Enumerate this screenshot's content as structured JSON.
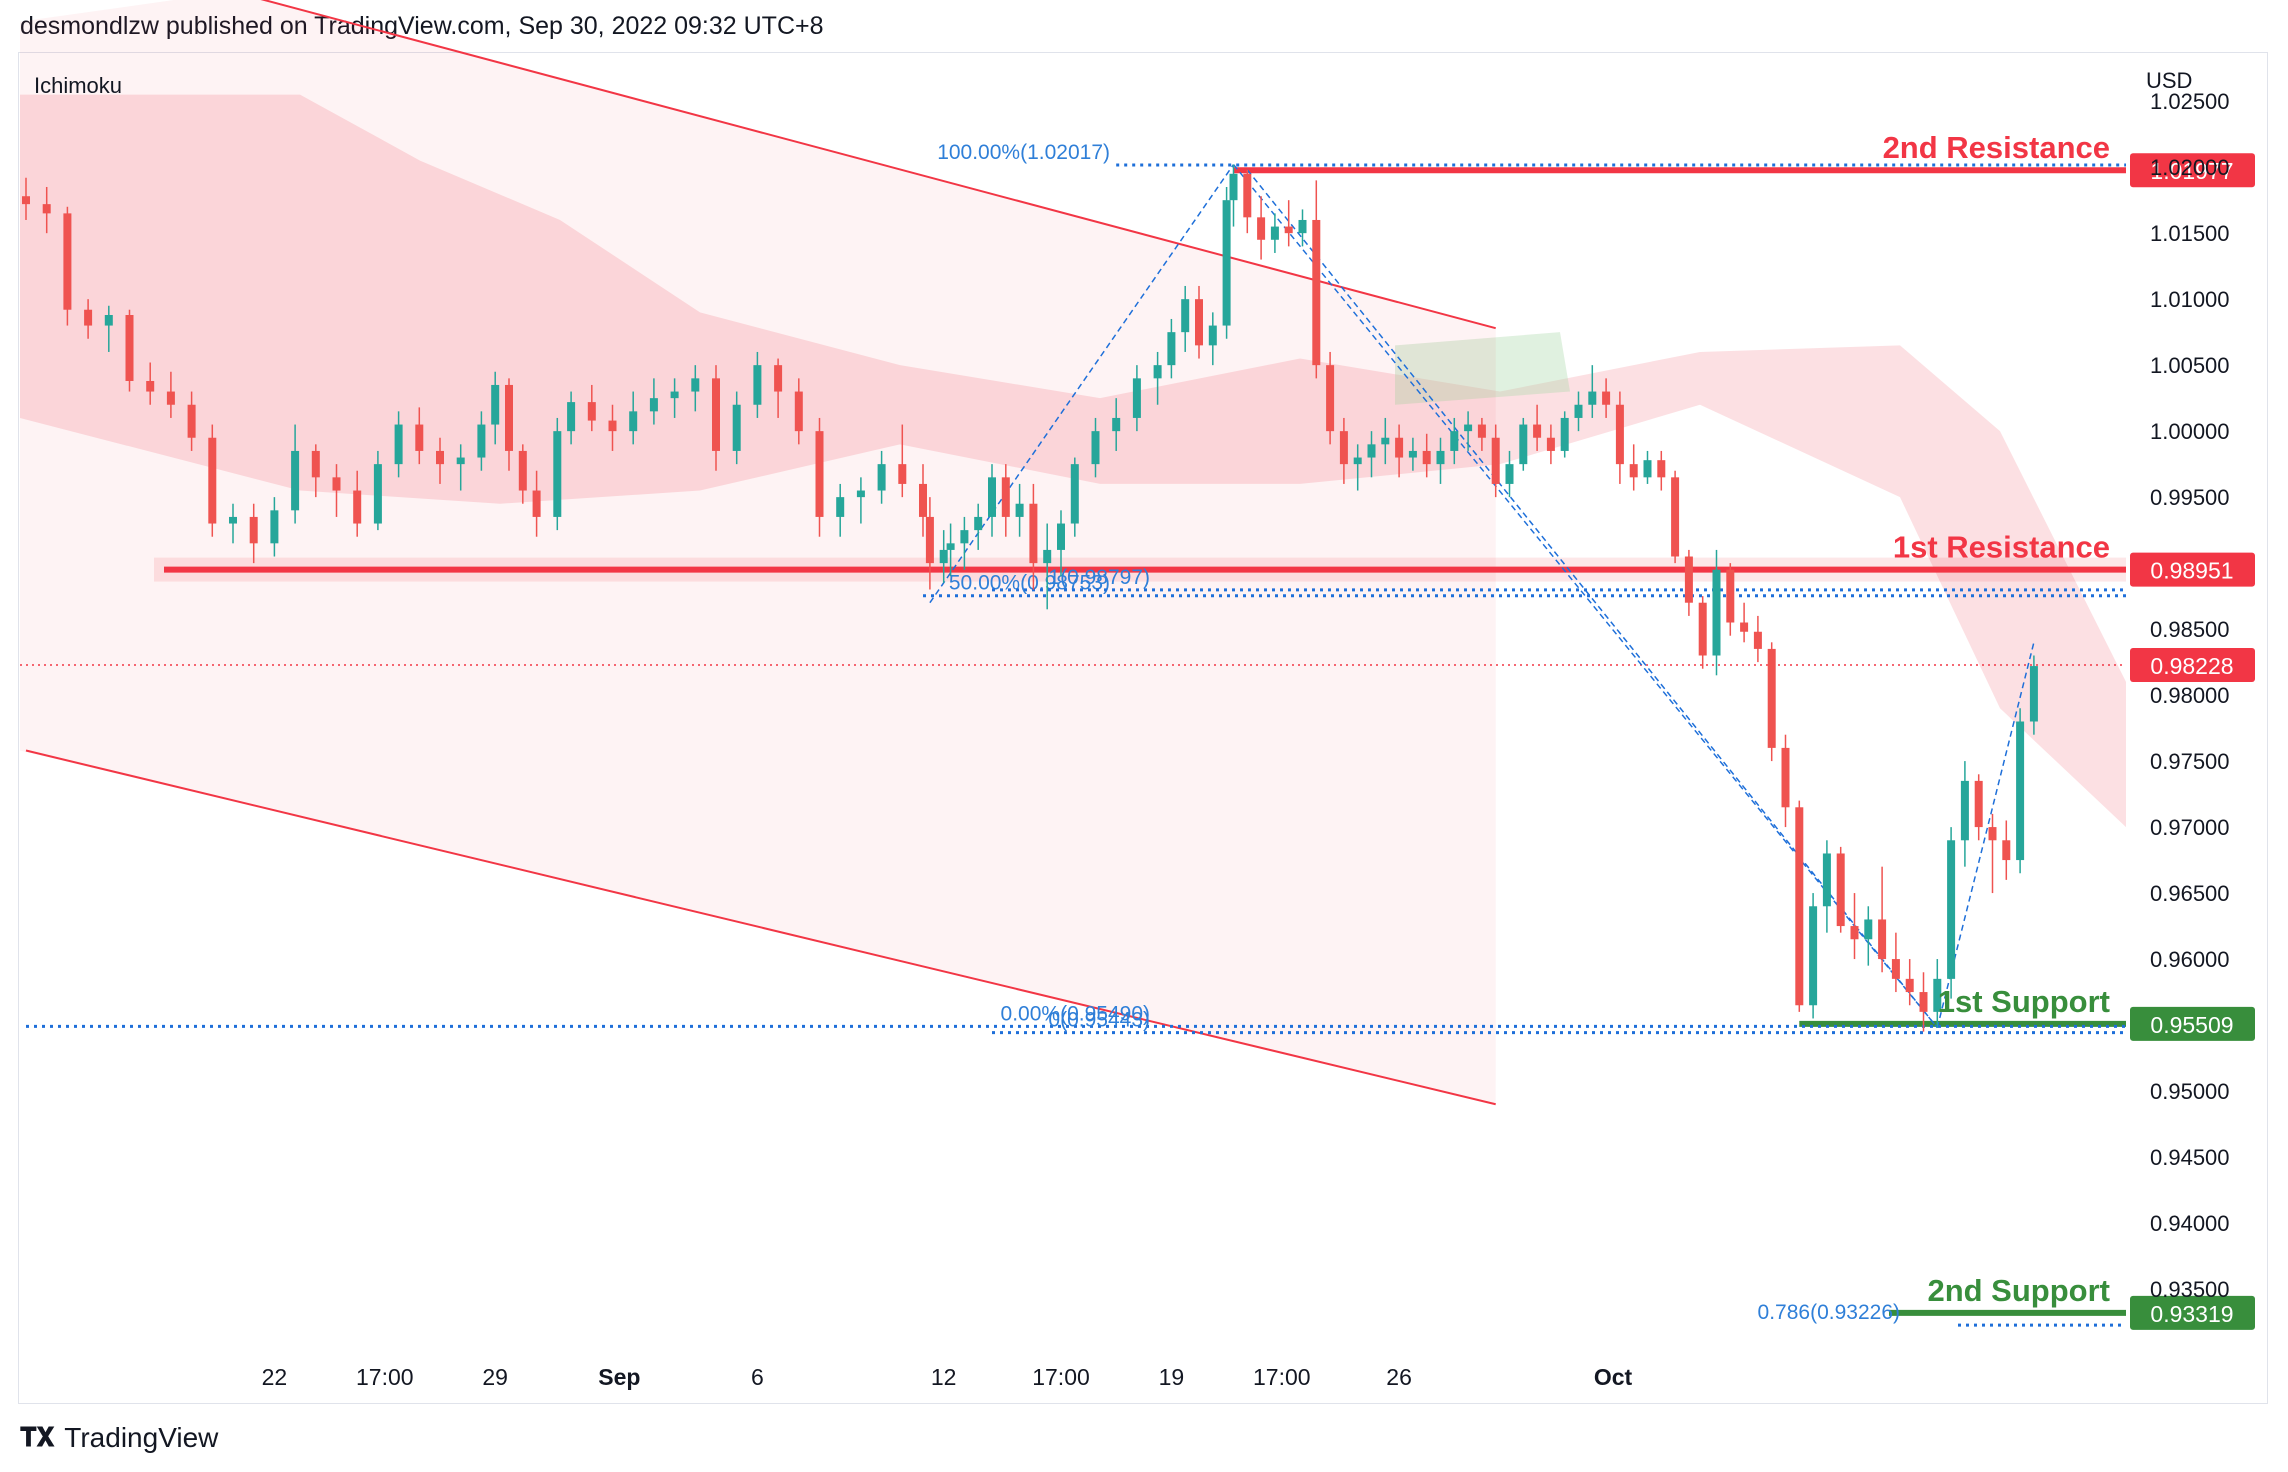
{
  "header": {
    "published": "desmondlzw published on TradingView.com, Sep 30, 2022 09:32 UTC+8"
  },
  "footer": {
    "brand": "TradingView",
    "logo_icon": "tradingview-logo-icon"
  },
  "chart_data": {
    "type": "candlestick",
    "indicator": "Ichimoku",
    "currency": "USD",
    "ylim": [
      0.93,
      1.0285
    ],
    "y_ticks": [
      "1.02500",
      "1.02000",
      "1.01500",
      "1.01000",
      "1.00500",
      "1.00000",
      "0.99500",
      "0.98500",
      "0.98000",
      "0.97500",
      "0.97000",
      "0.96500",
      "0.96000",
      "0.95000",
      "0.94500",
      "0.94000",
      "0.93500"
    ],
    "x_ticks": [
      {
        "label": "22",
        "t": 36,
        "bold": false
      },
      {
        "label": "17:00",
        "t": 52,
        "bold": false
      },
      {
        "label": "29",
        "t": 68,
        "bold": false
      },
      {
        "label": "Sep",
        "t": 86,
        "bold": true
      },
      {
        "label": "6",
        "t": 106,
        "bold": false
      },
      {
        "label": "12",
        "t": 133,
        "bold": false
      },
      {
        "label": "17:00",
        "t": 150,
        "bold": false
      },
      {
        "label": "19",
        "t": 166,
        "bold": false
      },
      {
        "label": "17:00",
        "t": 182,
        "bold": false
      },
      {
        "label": "26",
        "t": 199,
        "bold": false
      },
      {
        "label": "Oct",
        "t": 230,
        "bold": true
      }
    ],
    "price_levels": [
      {
        "label": "2nd Resistance",
        "price": 1.01977,
        "tag": "1.01977",
        "color": "#f23645"
      },
      {
        "label": "1st Resistance",
        "price": 0.98951,
        "tag": "0.98951",
        "color": "#f23645"
      },
      {
        "label": "1st Support",
        "price": 0.95509,
        "tag": "0.95509",
        "color": "#388e3c"
      },
      {
        "label": "2nd Support",
        "price": 0.93319,
        "tag": "0.93319",
        "color": "#388e3c"
      }
    ],
    "last_price": {
      "price": 0.98228,
      "tag": "0.98228",
      "color": "#f23645"
    },
    "fib_labels": [
      {
        "text": "100.00%(1.02017)",
        "price": 1.02017
      },
      {
        "text": "50.00%(0.98753)",
        "price": 0.98753
      },
      {
        "text": "1(0.98797)",
        "price": 0.98797
      },
      {
        "text": "0.00%(0.95490)",
        "price": 0.9549
      },
      {
        "text": "0(0.95443)",
        "price": 0.95443
      },
      {
        "text": "0.786(0.93226)",
        "price": 0.93226
      }
    ],
    "channel": {
      "upper": [
        [
          30,
          1.0333
        ],
        [
          213,
          1.0078
        ]
      ],
      "lower": [
        [
          0,
          0.9758
        ],
        [
          213,
          0.949
        ]
      ]
    },
    "candles": [
      [
        0,
        1.0178,
        1.0192,
        1.016,
        1.0172
      ],
      [
        3,
        1.0172,
        1.0185,
        1.015,
        1.0165
      ],
      [
        6,
        1.0165,
        1.017,
        1.008,
        1.0092
      ],
      [
        9,
        1.0092,
        1.01,
        1.007,
        1.008
      ],
      [
        12,
        1.008,
        1.0095,
        1.006,
        1.0088
      ],
      [
        15,
        1.0088,
        1.0092,
        1.003,
        1.0038
      ],
      [
        18,
        1.0038,
        1.0052,
        1.002,
        1.003
      ],
      [
        21,
        1.003,
        1.0045,
        1.001,
        1.002
      ],
      [
        24,
        1.002,
        1.003,
        0.9985,
        0.9995
      ],
      [
        27,
        0.9995,
        1.0005,
        0.992,
        0.993
      ],
      [
        30,
        0.993,
        0.9945,
        0.9915,
        0.9935
      ],
      [
        33,
        0.9935,
        0.9945,
        0.99,
        0.9915
      ],
      [
        36,
        0.9915,
        0.995,
        0.9905,
        0.994
      ],
      [
        39,
        0.994,
        1.0005,
        0.993,
        0.9985
      ],
      [
        42,
        0.9985,
        0.999,
        0.995,
        0.9965
      ],
      [
        45,
        0.9965,
        0.9975,
        0.9935,
        0.9955
      ],
      [
        48,
        0.9955,
        0.997,
        0.992,
        0.993
      ],
      [
        51,
        0.993,
        0.9985,
        0.9925,
        0.9975
      ],
      [
        54,
        0.9975,
        1.0015,
        0.9965,
        1.0005
      ],
      [
        57,
        1.0005,
        1.0018,
        0.9975,
        0.9985
      ],
      [
        60,
        0.9985,
        0.9995,
        0.996,
        0.9975
      ],
      [
        63,
        0.9975,
        0.999,
        0.9955,
        0.998
      ],
      [
        66,
        0.998,
        1.0015,
        0.997,
        1.0005
      ],
      [
        68,
        1.0005,
        1.0045,
        0.999,
        1.0035
      ],
      [
        70,
        1.0035,
        1.004,
        0.997,
        0.9985
      ],
      [
        72,
        0.9985,
        0.999,
        0.9945,
        0.9955
      ],
      [
        74,
        0.9955,
        0.997,
        0.992,
        0.9935
      ],
      [
        77,
        0.9935,
        1.001,
        0.9925,
        1.0
      ],
      [
        79,
        1.0,
        1.003,
        0.999,
        1.0022
      ],
      [
        82,
        1.0022,
        1.0035,
        1.0,
        1.0008
      ],
      [
        85,
        1.0008,
        1.002,
        0.9985,
        1.0
      ],
      [
        88,
        1.0,
        1.003,
        0.999,
        1.0015
      ],
      [
        91,
        1.0015,
        1.004,
        1.0005,
        1.0025
      ],
      [
        94,
        1.0025,
        1.004,
        1.001,
        1.003
      ],
      [
        97,
        1.003,
        1.005,
        1.0015,
        1.004
      ],
      [
        100,
        1.004,
        1.005,
        0.997,
        0.9985
      ],
      [
        103,
        0.9985,
        1.003,
        0.9975,
        1.002
      ],
      [
        106,
        1.002,
        1.006,
        1.001,
        1.005
      ],
      [
        109,
        1.005,
        1.0055,
        1.001,
        1.003
      ],
      [
        112,
        1.003,
        1.004,
        0.999,
        1.0
      ],
      [
        115,
        1.0,
        1.001,
        0.992,
        0.9935
      ],
      [
        118,
        0.9935,
        0.996,
        0.992,
        0.995
      ],
      [
        121,
        0.995,
        0.9965,
        0.993,
        0.9955
      ],
      [
        124,
        0.9955,
        0.9985,
        0.9945,
        0.9975
      ],
      [
        127,
        0.9975,
        1.0005,
        0.995,
        0.996
      ],
      [
        130,
        0.996,
        0.9975,
        0.992,
        0.9935
      ],
      [
        131,
        0.9935,
        0.995,
        0.988,
        0.99
      ],
      [
        133,
        0.99,
        0.9925,
        0.9885,
        0.991
      ],
      [
        134,
        0.991,
        0.993,
        0.989,
        0.9915
      ],
      [
        136,
        0.9915,
        0.9935,
        0.9895,
        0.9925
      ],
      [
        138,
        0.9925,
        0.9945,
        0.991,
        0.9935
      ],
      [
        140,
        0.9935,
        0.9975,
        0.992,
        0.9965
      ],
      [
        142,
        0.9965,
        0.9975,
        0.992,
        0.9935
      ],
      [
        144,
        0.9935,
        0.996,
        0.992,
        0.9945
      ],
      [
        146,
        0.9945,
        0.996,
        0.988,
        0.99
      ],
      [
        148,
        0.99,
        0.993,
        0.9865,
        0.991
      ],
      [
        150,
        0.991,
        0.994,
        0.989,
        0.993
      ],
      [
        152,
        0.993,
        0.998,
        0.992,
        0.9975
      ],
      [
        155,
        0.9975,
        1.001,
        0.9965,
        1.0
      ],
      [
        158,
        1.0,
        1.0025,
        0.9985,
        1.001
      ],
      [
        161,
        1.001,
        1.005,
        1.0,
        1.004
      ],
      [
        164,
        1.004,
        1.006,
        1.002,
        1.005
      ],
      [
        166,
        1.005,
        1.0085,
        1.004,
        1.0075
      ],
      [
        168,
        1.0075,
        1.011,
        1.006,
        1.01
      ],
      [
        170,
        1.01,
        1.011,
        1.0055,
        1.0065
      ],
      [
        172,
        1.0065,
        1.009,
        1.005,
        1.008
      ],
      [
        174,
        1.008,
        1.0185,
        1.007,
        1.0175
      ],
      [
        175,
        1.0175,
        1.0202,
        1.0155,
        1.0195
      ],
      [
        177,
        1.0195,
        1.0198,
        1.015,
        1.0162
      ],
      [
        179,
        1.0162,
        1.0178,
        1.013,
        1.0145
      ],
      [
        181,
        1.0145,
        1.0165,
        1.0135,
        1.0155
      ],
      [
        183,
        1.0155,
        1.0175,
        1.014,
        1.015
      ],
      [
        185,
        1.015,
        1.0168,
        1.014,
        1.016
      ],
      [
        187,
        1.016,
        1.019,
        1.004,
        1.005
      ],
      [
        189,
        1.005,
        1.006,
        0.999,
        1.0
      ],
      [
        191,
        1.0,
        1.001,
        0.996,
        0.9975
      ],
      [
        193,
        0.9975,
        0.999,
        0.9955,
        0.998
      ],
      [
        195,
        0.998,
        1.0,
        0.9965,
        0.999
      ],
      [
        197,
        0.999,
        1.001,
        0.9975,
        0.9995
      ],
      [
        199,
        0.9995,
        1.0005,
        0.9965,
        0.998
      ],
      [
        201,
        0.998,
        0.9995,
        0.997,
        0.9985
      ],
      [
        203,
        0.9985,
        0.9998,
        0.9965,
        0.9975
      ],
      [
        205,
        0.9975,
        0.9995,
        0.996,
        0.9985
      ],
      [
        207,
        0.9985,
        1.001,
        0.9975,
        1.0
      ],
      [
        209,
        1.0,
        1.0015,
        0.9985,
        1.0005
      ],
      [
        211,
        1.0005,
        1.001,
        0.9985,
        0.9995
      ],
      [
        213,
        0.9995,
        1.0005,
        0.995,
        0.996
      ],
      [
        215,
        0.996,
        0.9985,
        0.995,
        0.9975
      ],
      [
        217,
        0.9975,
        1.001,
        0.997,
        1.0005
      ],
      [
        219,
        1.0005,
        1.002,
        0.9985,
        0.9995
      ],
      [
        221,
        0.9995,
        1.0005,
        0.9975,
        0.9985
      ],
      [
        223,
        0.9985,
        1.0015,
        0.998,
        1.001
      ],
      [
        225,
        1.001,
        1.003,
        1.0,
        1.002
      ],
      [
        227,
        1.002,
        1.005,
        1.001,
        1.003
      ],
      [
        229,
        1.003,
        1.004,
        1.001,
        1.002
      ],
      [
        231,
        1.002,
        1.003,
        0.996,
        0.9975
      ],
      [
        233,
        0.9975,
        0.999,
        0.9955,
        0.9965
      ],
      [
        235,
        0.9965,
        0.9985,
        0.996,
        0.9978
      ],
      [
        237,
        0.9978,
        0.9985,
        0.9955,
        0.9965
      ],
      [
        239,
        0.9965,
        0.997,
        0.99,
        0.9905
      ],
      [
        241,
        0.9905,
        0.991,
        0.986,
        0.987
      ],
      [
        243,
        0.987,
        0.9875,
        0.982,
        0.983
      ],
      [
        245,
        0.983,
        0.991,
        0.9815,
        0.9895
      ],
      [
        247,
        0.9895,
        0.99,
        0.9845,
        0.9855
      ],
      [
        249,
        0.9855,
        0.987,
        0.984,
        0.9848
      ],
      [
        251,
        0.9848,
        0.986,
        0.9825,
        0.9835
      ],
      [
        253,
        0.9835,
        0.984,
        0.975,
        0.976
      ],
      [
        255,
        0.976,
        0.977,
        0.97,
        0.9715
      ],
      [
        257,
        0.9715,
        0.972,
        0.956,
        0.9565
      ],
      [
        259,
        0.9565,
        0.965,
        0.9555,
        0.964
      ],
      [
        261,
        0.964,
        0.969,
        0.962,
        0.968
      ],
      [
        263,
        0.968,
        0.9685,
        0.962,
        0.9625
      ],
      [
        265,
        0.9625,
        0.965,
        0.96,
        0.9615
      ],
      [
        267,
        0.9615,
        0.964,
        0.9595,
        0.963
      ],
      [
        269,
        0.963,
        0.967,
        0.959,
        0.96
      ],
      [
        271,
        0.96,
        0.962,
        0.9575,
        0.9585
      ],
      [
        273,
        0.9585,
        0.96,
        0.9565,
        0.9575
      ],
      [
        275,
        0.9575,
        0.959,
        0.9545,
        0.956
      ],
      [
        277,
        0.956,
        0.96,
        0.9548,
        0.9585
      ],
      [
        279,
        0.9585,
        0.97,
        0.957,
        0.969
      ],
      [
        281,
        0.969,
        0.975,
        0.967,
        0.9735
      ],
      [
        283,
        0.9735,
        0.974,
        0.969,
        0.97
      ],
      [
        285,
        0.97,
        0.971,
        0.965,
        0.969
      ],
      [
        287,
        0.969,
        0.9705,
        0.966,
        0.9675
      ],
      [
        289,
        0.9675,
        0.979,
        0.9665,
        0.978
      ],
      [
        291,
        0.978,
        0.983,
        0.977,
        0.9822
      ]
    ]
  }
}
